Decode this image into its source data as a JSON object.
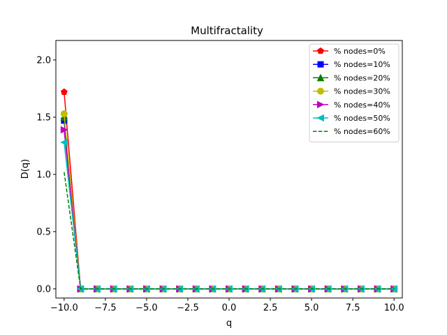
{
  "chart_data": {
    "type": "line",
    "title": "Multifractality",
    "xlabel": "q",
    "ylabel": "D(q)",
    "xlim": [
      -10.5,
      10.5
    ],
    "ylim": [
      -0.08,
      2.17
    ],
    "x_ticks": [
      -10.0,
      -7.5,
      -5.0,
      -2.5,
      0.0,
      2.5,
      5.0,
      7.5,
      10.0
    ],
    "x_tick_labels": [
      "−10.0",
      "−7.5",
      "−5.0",
      "−2.5",
      "0.0",
      "2.5",
      "5.0",
      "7.5",
      "10.0"
    ],
    "y_ticks": [
      0.0,
      0.5,
      1.0,
      1.5,
      2.0
    ],
    "y_tick_labels": [
      "0.0",
      "0.5",
      "1.0",
      "1.5",
      "2.0"
    ],
    "grid": false,
    "legend_position": "top-right",
    "x": [
      -10,
      -9,
      -8,
      -7,
      -6,
      -5,
      -4,
      -3,
      -2,
      -1,
      0,
      1,
      2,
      3,
      4,
      5,
      6,
      7,
      8,
      9,
      10
    ],
    "series": [
      {
        "name": "% nodes=0%",
        "color": "#ff0000",
        "marker": "pentagon",
        "dash": false,
        "values": [
          1.72,
          0,
          0,
          0,
          0,
          0,
          0,
          0,
          0,
          0,
          0,
          0,
          0,
          0,
          0,
          0,
          0,
          0,
          0,
          0,
          0
        ]
      },
      {
        "name": "% nodes=10%",
        "color": "#0000ff",
        "marker": "square",
        "dash": false,
        "values": [
          1.47,
          0,
          0,
          0,
          0,
          0,
          0,
          0,
          0,
          0,
          0,
          0,
          0,
          0,
          0,
          0,
          0,
          0,
          0,
          0,
          0
        ]
      },
      {
        "name": "% nodes=20%",
        "color": "#008000",
        "marker": "triangle-up",
        "dash": false,
        "values": [
          1.5,
          0,
          0,
          0,
          0,
          0,
          0,
          0,
          0,
          0,
          0,
          0,
          0,
          0,
          0,
          0,
          0,
          0,
          0,
          0,
          0
        ]
      },
      {
        "name": "% nodes=30%",
        "color": "#bfbf00",
        "marker": "circle",
        "dash": false,
        "values": [
          1.53,
          0,
          0,
          0,
          0,
          0,
          0,
          0,
          0,
          0,
          0,
          0,
          0,
          0,
          0,
          0,
          0,
          0,
          0,
          0,
          0
        ]
      },
      {
        "name": "% nodes=40%",
        "color": "#bf00bf",
        "marker": "triangle-right",
        "dash": false,
        "values": [
          1.39,
          0,
          0,
          0,
          0,
          0,
          0,
          0,
          0,
          0,
          0,
          0,
          0,
          0,
          0,
          0,
          0,
          0,
          0,
          0,
          0
        ]
      },
      {
        "name": "% nodes=50%",
        "color": "#00bfbf",
        "marker": "triangle-left",
        "dash": false,
        "values": [
          1.28,
          0,
          0,
          0,
          0,
          0,
          0,
          0,
          0,
          0,
          0,
          0,
          0,
          0,
          0,
          0,
          0,
          0,
          0,
          0,
          0
        ]
      },
      {
        "name": "% nodes=60%",
        "color": "#008000",
        "marker": "none",
        "dash": true,
        "values": [
          1.02,
          0,
          0,
          0,
          0,
          0,
          0,
          0,
          0,
          0,
          0,
          0,
          0,
          0,
          0,
          0,
          0,
          0,
          0,
          0,
          0
        ]
      }
    ]
  }
}
